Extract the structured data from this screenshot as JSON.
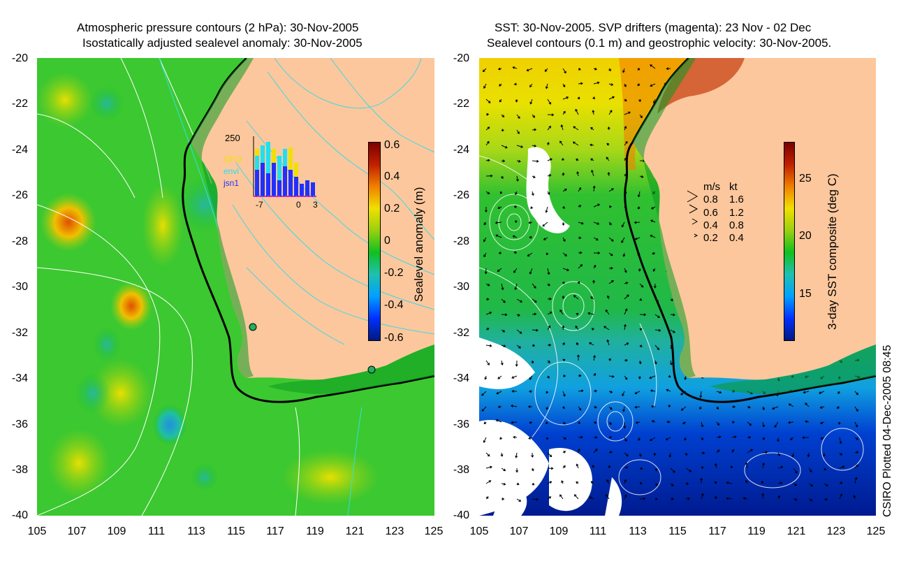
{
  "left_panel": {
    "title_line1": "Atmospheric pressure contours (2 hPa): 30-Nov-2005",
    "title_line2": "Isostatically adjusted sealevel anomaly: 30-Nov-2005",
    "colorbar": {
      "label": "Sealevel anomaly (m)",
      "ticks": [
        "0.6",
        "0.4",
        "0.2",
        "0",
        "-0.2",
        "-0.4",
        "-0.6"
      ],
      "colors": [
        "#001a80",
        "#0030ff",
        "#00a0ff",
        "#20c0b0",
        "#10c020",
        "#9ad010",
        "#f0e000",
        "#f08000",
        "#c02000",
        "#7a0000"
      ]
    },
    "inset": {
      "ymax": "250",
      "legend": [
        "GFO",
        "envi",
        "jsn1"
      ],
      "legend_colors": [
        "#f0e000",
        "#20e0f0",
        "#2030ff"
      ],
      "xticks": [
        "-7",
        "0",
        "3"
      ]
    }
  },
  "right_panel": {
    "title_line1": "SST: 30-Nov-2005. SVP drifters (magenta): 23 Nov - 02 Dec",
    "title_line2": "Sealevel contours (0.1 m) and geostrophic velocity: 30-Nov-2005.",
    "colorbar": {
      "label": "3-day SST composite (deg C)",
      "ticks": [
        "25",
        "20",
        "15"
      ],
      "colors": [
        "#001a80",
        "#0030ff",
        "#00a0ff",
        "#20c0b0",
        "#10c020",
        "#9ad010",
        "#f0e000",
        "#f08000",
        "#c02000",
        "#7a0000"
      ]
    },
    "velocity_legend": {
      "header_ms": "m/s",
      "header_kt": "kt",
      "rows": [
        {
          "ms": "0.8",
          "kt": "1.6"
        },
        {
          "ms": "0.6",
          "kt": "1.2"
        },
        {
          "ms": "0.4",
          "kt": "0.8"
        },
        {
          "ms": "0.2",
          "kt": "0.4"
        }
      ]
    }
  },
  "axes": {
    "y_ticks": [
      "-20",
      "-22",
      "-24",
      "-26",
      "-28",
      "-30",
      "-32",
      "-34",
      "-36",
      "-38",
      "-40"
    ],
    "x_ticks": [
      "105",
      "107",
      "109",
      "111",
      "113",
      "115",
      "117",
      "119",
      "121",
      "123",
      "125"
    ]
  },
  "credit": "CSIRO Plotted 04-Dec-2005 08:45",
  "colors": {
    "land": "#fcc79c",
    "ocean_mid": "#18c030",
    "coast": "#000000"
  }
}
